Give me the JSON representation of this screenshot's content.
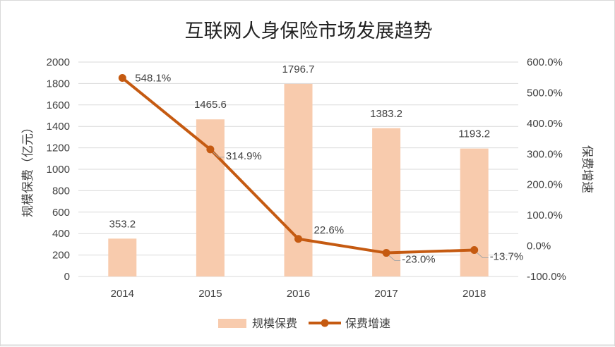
{
  "chart_data": {
    "type": "bar",
    "title": "互联网人身保险市场发展趋势",
    "categories": [
      "2014",
      "2015",
      "2016",
      "2017",
      "2018"
    ],
    "series": [
      {
        "name": "规模保费",
        "type": "bar",
        "axis": "left",
        "values": [
          353.2,
          1465.6,
          1796.7,
          1383.2,
          1193.2
        ],
        "labels": [
          "353.2",
          "1465.6",
          "1796.7",
          "1383.2",
          "1193.2"
        ],
        "color": "#F8CBAD"
      },
      {
        "name": "保费增速",
        "type": "line",
        "axis": "right",
        "values": [
          548.1,
          314.9,
          22.6,
          -23.0,
          -13.7
        ],
        "labels": [
          "548.1%",
          "314.9%",
          "22.6%",
          "-23.0%",
          "-13.7%"
        ],
        "color": "#C55A11"
      }
    ],
    "ylabel": "规模保费（亿元）",
    "y2label": "保费增速",
    "ylim": [
      0,
      2000
    ],
    "yticks": [
      "0",
      "200",
      "400",
      "600",
      "800",
      "1000",
      "1200",
      "1400",
      "1600",
      "1800",
      "2000"
    ],
    "y2lim": [
      -100,
      600
    ],
    "y2ticks": [
      "-100.0%",
      "0.0%",
      "100.0%",
      "200.0%",
      "300.0%",
      "400.0%",
      "500.0%",
      "600.0%"
    ],
    "grid": true,
    "legend": "bottom-center"
  }
}
